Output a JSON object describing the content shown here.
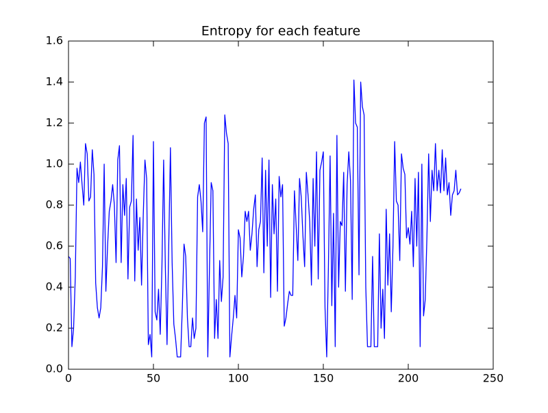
{
  "chart_data": {
    "type": "line",
    "title": "Entropy for each feature",
    "xlim": [
      0,
      250
    ],
    "xticks": [
      0,
      50,
      100,
      150,
      200,
      250
    ],
    "ylim": [
      0,
      1.6
    ],
    "yticks": [
      {
        "value": 0,
        "label": "0.0"
      },
      0.2,
      0.4,
      0.6,
      0.8,
      {
        "value": 1,
        "label": "1.0"
      },
      1.2,
      1.4,
      1.6
    ],
    "x": [
      0,
      1,
      2,
      3,
      4,
      5,
      6,
      7,
      8,
      9,
      10,
      11,
      12,
      13,
      14,
      15,
      16,
      17,
      18,
      19,
      20,
      21,
      22,
      23,
      24,
      25,
      26,
      27,
      28,
      29,
      30,
      31,
      32,
      33,
      34,
      35,
      36,
      37,
      38,
      39,
      40,
      41,
      42,
      43,
      44,
      45,
      46,
      47,
      48,
      49,
      50,
      51,
      52,
      53,
      54,
      55,
      56,
      57,
      58,
      59,
      60,
      61,
      62,
      63,
      64,
      65,
      66,
      67,
      68,
      69,
      70,
      71,
      72,
      73,
      74,
      75,
      76,
      77,
      78,
      79,
      80,
      81,
      82,
      83,
      84,
      85,
      86,
      87,
      88,
      89,
      90,
      91,
      92,
      93,
      94,
      95,
      96,
      97,
      98,
      99,
      100,
      101,
      102,
      103,
      104,
      105,
      106,
      107,
      108,
      109,
      110,
      111,
      112,
      113,
      114,
      115,
      116,
      117,
      118,
      119,
      120,
      121,
      122,
      123,
      124,
      125,
      126,
      127,
      128,
      129,
      130,
      131,
      132,
      133,
      134,
      135,
      136,
      137,
      138,
      139,
      140,
      141,
      142,
      143,
      144,
      145,
      146,
      147,
      148,
      149,
      150,
      151,
      152,
      153,
      154,
      155,
      156,
      157,
      158,
      159,
      160,
      161,
      162,
      163,
      164,
      165,
      166,
      167,
      168,
      169,
      170,
      171,
      172,
      173,
      174,
      175,
      176,
      177,
      178,
      179,
      180,
      181,
      182,
      183,
      184,
      185,
      186,
      187,
      188,
      189,
      190,
      191,
      192,
      193,
      194,
      195,
      196,
      197,
      198,
      199,
      200,
      201,
      202,
      203,
      204,
      205,
      206,
      207,
      208,
      209,
      210,
      211,
      212,
      213,
      214,
      215,
      216,
      217,
      218,
      219,
      220,
      221,
      222,
      223,
      224,
      225,
      226,
      227,
      228,
      229,
      230,
      231
    ],
    "series": [
      {
        "color": "#0000ff",
        "values": [
          0.55,
          0.54,
          0.11,
          0.2,
          0.45,
          0.98,
          0.91,
          1.01,
          0.9,
          0.8,
          1.1,
          1.05,
          0.82,
          0.84,
          1.07,
          0.95,
          0.42,
          0.3,
          0.25,
          0.3,
          0.5,
          1.0,
          0.38,
          0.6,
          0.77,
          0.82,
          0.9,
          0.8,
          0.52,
          1.02,
          1.09,
          0.52,
          0.9,
          0.75,
          0.93,
          0.44,
          0.79,
          0.82,
          1.14,
          0.43,
          0.83,
          0.58,
          0.74,
          0.41,
          0.75,
          1.02,
          0.93,
          0.12,
          0.17,
          0.06,
          1.11,
          0.28,
          0.24,
          0.39,
          0.17,
          0.5,
          1.02,
          0.5,
          0.12,
          0.6,
          1.08,
          0.52,
          0.22,
          0.15,
          0.06,
          0.06,
          0.06,
          0.3,
          0.61,
          0.55,
          0.25,
          0.11,
          0.11,
          0.25,
          0.15,
          0.2,
          0.84,
          0.9,
          0.82,
          0.67,
          1.2,
          1.23,
          0.06,
          0.5,
          0.91,
          0.87,
          0.15,
          0.34,
          0.15,
          0.53,
          0.33,
          0.45,
          1.24,
          1.15,
          1.1,
          0.06,
          0.16,
          0.25,
          0.36,
          0.25,
          0.68,
          0.64,
          0.45,
          0.55,
          0.77,
          0.72,
          0.77,
          0.58,
          0.66,
          0.78,
          0.85,
          0.5,
          0.68,
          0.72,
          1.03,
          0.47,
          0.97,
          0.6,
          1.02,
          0.35,
          0.9,
          0.66,
          0.83,
          0.38,
          0.94,
          0.84,
          0.9,
          0.21,
          0.25,
          0.32,
          0.38,
          0.36,
          0.36,
          0.87,
          0.7,
          0.53,
          0.93,
          0.84,
          0.65,
          0.5,
          0.96,
          0.85,
          0.72,
          0.41,
          0.93,
          0.6,
          1.06,
          0.44,
          0.97,
          1.01,
          1.06,
          0.3,
          0.06,
          0.5,
          1.04,
          0.31,
          0.76,
          0.11,
          1.14,
          0.4,
          0.72,
          0.7,
          0.96,
          0.38,
          0.9,
          1.06,
          0.92,
          0.34,
          1.41,
          1.2,
          1.18,
          0.46,
          1.4,
          1.28,
          1.24,
          0.4,
          0.11,
          0.11,
          0.11,
          0.55,
          0.11,
          0.11,
          0.11,
          0.66,
          0.2,
          0.39,
          0.15,
          0.78,
          0.41,
          0.66,
          0.28,
          0.6,
          1.11,
          0.82,
          0.8,
          0.53,
          1.05,
          0.98,
          0.95,
          0.64,
          0.69,
          0.61,
          0.77,
          0.5,
          0.93,
          0.6,
          0.96,
          0.11,
          1.0,
          0.26,
          0.34,
          0.65,
          1.05,
          0.72,
          0.97,
          0.87,
          1.1,
          0.87,
          0.97,
          0.86,
          1.07,
          0.87,
          1.03,
          0.85,
          0.91,
          0.75,
          0.85,
          0.87,
          0.97,
          0.85,
          0.86,
          0.88
        ]
      }
    ]
  }
}
